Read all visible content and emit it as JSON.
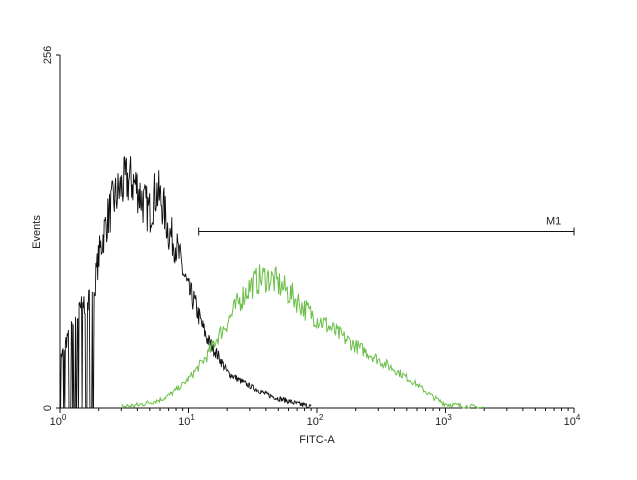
{
  "chart_data": {
    "type": "line",
    "title": "",
    "xlabel": "FITC-A",
    "ylabel": "Events",
    "x_scale": "log",
    "xlim": [
      1,
      10000
    ],
    "ylim": [
      0,
      256
    ],
    "y_ticks": [
      {
        "value": 0,
        "label": "0"
      },
      {
        "value": 256,
        "label": "256"
      }
    ],
    "x_ticks": [
      {
        "value": 1,
        "base": "10",
        "exp": "0"
      },
      {
        "value": 10,
        "base": "10",
        "exp": "1"
      },
      {
        "value": 100,
        "base": "10",
        "exp": "2"
      },
      {
        "value": 1000,
        "base": "10",
        "exp": "3"
      },
      {
        "value": 10000,
        "base": "10",
        "exp": "4"
      }
    ],
    "grid": false,
    "legend": "none",
    "marker": {
      "label": "M1",
      "from": 12,
      "to": 10000,
      "y": 128
    },
    "series": [
      {
        "color": "#111111",
        "x": [
          1.0,
          1.2,
          1.5,
          1.8,
          2.0,
          2.3,
          2.6,
          3.0,
          3.3,
          3.6,
          4.0,
          4.5,
          5.0,
          5.6,
          6.3,
          7.0,
          8.0,
          9.0,
          10,
          11,
          12.5,
          14,
          16,
          18,
          20,
          25,
          30,
          40,
          50,
          60,
          70,
          80,
          90
        ],
        "y": [
          35,
          55,
          75,
          80,
          110,
          135,
          150,
          160,
          165,
          165,
          160,
          148,
          142,
          158,
          148,
          128,
          118,
          100,
          85,
          78,
          62,
          50,
          42,
          34,
          26,
          20,
          16,
          10,
          7,
          5,
          3,
          2,
          1
        ]
      },
      {
        "color": "#6cc04a",
        "x": [
          3,
          4,
          5,
          6,
          7,
          8,
          9,
          10,
          12,
          14,
          16,
          20,
          25,
          30,
          35,
          40,
          45,
          50,
          60,
          70,
          80,
          100,
          120,
          150,
          200,
          250,
          300,
          400,
          500,
          600,
          700,
          800,
          900,
          1000,
          1200,
          1500,
          2000
        ],
        "y": [
          1,
          2,
          4,
          6,
          9,
          13,
          17,
          21,
          30,
          38,
          48,
          62,
          78,
          88,
          93,
          95,
          93,
          90,
          84,
          78,
          72,
          65,
          60,
          53,
          45,
          40,
          35,
          28,
          22,
          17,
          12,
          8,
          5,
          3,
          2,
          1,
          0
        ]
      }
    ]
  }
}
